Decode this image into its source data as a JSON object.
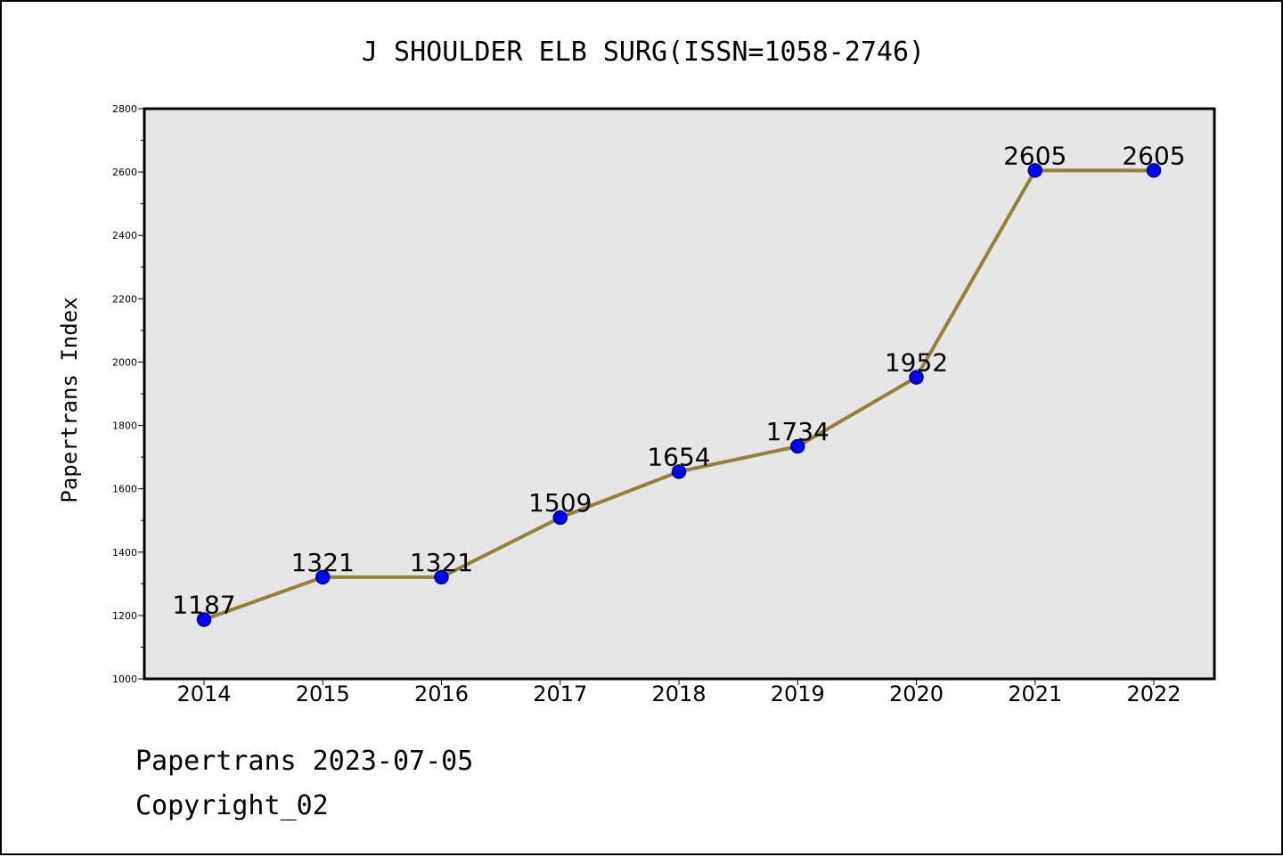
{
  "chart_data": {
    "type": "line",
    "title": "J SHOULDER ELB SURG(ISSN=1058-2746)",
    "xlabel": "",
    "ylabel": "Papertrans Index",
    "categories": [
      "2014",
      "2015",
      "2016",
      "2017",
      "2018",
      "2019",
      "2020",
      "2021",
      "2022"
    ],
    "series": [
      {
        "values": [
          1187,
          1321,
          1321,
          1509,
          1654,
          1734,
          1952,
          2605,
          2605
        ]
      }
    ],
    "data_labels": [
      "1187",
      "1321",
      "1321",
      "1509",
      "1654",
      "1734",
      "1952",
      "2605",
      "2605"
    ],
    "ylim": [
      1000,
      2800
    ],
    "yticks": [
      1000,
      1200,
      1400,
      1600,
      1800,
      2000,
      2200,
      2400,
      2600,
      2800
    ],
    "grid": false,
    "colors": {
      "line": "#938136",
      "marker_fill": "#0000ff",
      "marker_edge": "#000080",
      "plot_background": "#e6e6e6"
    }
  },
  "footer": {
    "date": "Papertrans 2023-07-05",
    "copyright": "Copyright_02"
  }
}
